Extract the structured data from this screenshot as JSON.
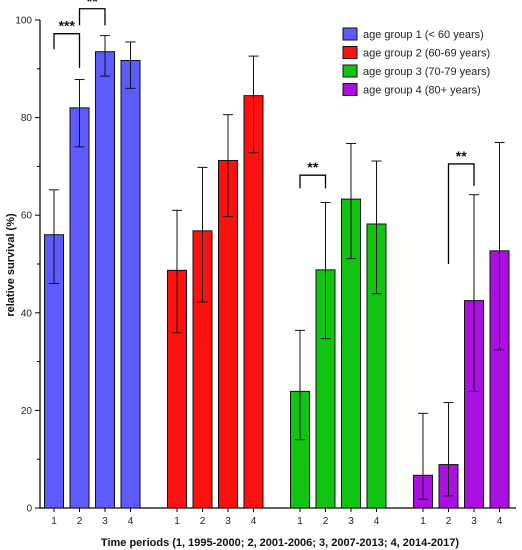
{
  "chart_data": {
    "type": "bar",
    "xlabel": "Time periods (1, 1995-2000; 2, 2001-2006; 3, 2007-2013; 4, 2014-2017)",
    "ylabel": "relative survival (%)",
    "ylim": [
      0,
      100
    ],
    "yticks": [
      "0",
      "20",
      "40",
      "60",
      "80",
      "100"
    ],
    "legend_position": "top-right",
    "grid": false,
    "series": [
      {
        "name": "age group 1 (< 60 years)",
        "color": "#5b5bff",
        "categories": [
          "1",
          "2",
          "3",
          "4"
        ],
        "values": [
          56,
          82,
          93.5,
          91.7
        ],
        "upper": [
          65.2,
          87.8,
          96.8,
          95.5
        ],
        "lower": [
          46,
          74,
          88.5,
          86
        ]
      },
      {
        "name": "age group 2 (60-69 years)",
        "color": "#ff1010",
        "categories": [
          "1",
          "2",
          "3",
          "4"
        ],
        "values": [
          48.7,
          56.8,
          71.2,
          84.5
        ],
        "upper": [
          61,
          69.8,
          80.6,
          92.6
        ],
        "lower": [
          35.9,
          42.2,
          59.7,
          72.8
        ]
      },
      {
        "name": "age group 3 (70-79 years)",
        "color": "#12c412",
        "categories": [
          "1",
          "2",
          "3",
          "4"
        ],
        "values": [
          23.9,
          48.8,
          63.3,
          58.2
        ],
        "upper": [
          36.4,
          62.6,
          74.7,
          71.1
        ],
        "lower": [
          14,
          34.7,
          51.1,
          43.9
        ]
      },
      {
        "name": "age group 4 (80+ years)",
        "color": "#aa10e0",
        "categories": [
          "1",
          "2",
          "3",
          "4"
        ],
        "values": [
          6.7,
          8.9,
          42.5,
          52.7
        ],
        "upper": [
          19.4,
          21.6,
          64.2,
          74.9
        ],
        "lower": [
          1.8,
          2.5,
          23.9,
          32.4
        ]
      }
    ],
    "annotations": [
      {
        "text": "***",
        "group": 0,
        "from": 0,
        "to": 1,
        "y": 97.2,
        "left_end": 94,
        "right_end": 90.2
      },
      {
        "text": "**",
        "group": 0,
        "from": 1,
        "to": 2,
        "y": 102.3,
        "left_end": 98.9,
        "right_end": 98.9
      },
      {
        "text": "**",
        "group": 2,
        "from": 0,
        "to": 1,
        "y": 68.2,
        "left_end": 65.5,
        "right_end": 65.5
      },
      {
        "text": "**",
        "group": 3,
        "from": 1,
        "to": 2,
        "y": 70.5,
        "left_end": 50,
        "right_end": 66
      }
    ]
  }
}
